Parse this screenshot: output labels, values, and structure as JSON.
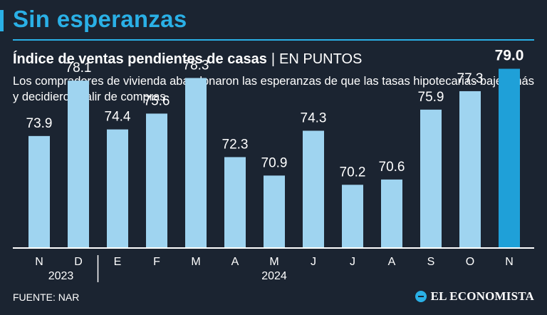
{
  "header": {
    "title": "Sin esperanzas",
    "subtitle": "Índice de ventas pendientes de casas",
    "separator": "|",
    "unit": "EN PUNTOS",
    "description": "Los compradores de vivienda abandonaron las esperanzas de que las tasas hipotecarias bajen más y decidieron salir de compras."
  },
  "footer": {
    "source": "FUENTE: NAR",
    "brand": "EL ECONOMISTA"
  },
  "colors": {
    "background": "#1b2431",
    "accent": "#2ab0e6",
    "bar": "#9fd4f0",
    "highlight_bar": "#1fa0d8",
    "text": "#ffffff"
  },
  "chart_data": {
    "type": "bar",
    "title": "Índice de ventas pendientes de casas",
    "ylabel": "EN PUNTOS",
    "xlabel": "",
    "categories": [
      "N",
      "D",
      "E",
      "F",
      "M",
      "A",
      "M",
      "J",
      "J",
      "A",
      "S",
      "O",
      "N"
    ],
    "values": [
      73.9,
      78.1,
      74.4,
      75.6,
      78.3,
      72.3,
      70.9,
      74.3,
      70.2,
      70.6,
      75.9,
      77.3,
      79.0
    ],
    "value_labels": [
      "73.9",
      "78.1",
      "74.4",
      "75.6",
      "78.3",
      "72.3",
      "70.9",
      "74.3",
      "70.2",
      "70.6",
      "75.9",
      "77.3",
      "79.0"
    ],
    "highlight_index": 12,
    "years": [
      {
        "label": "2023",
        "start_index": 0,
        "end_index": 1
      },
      {
        "label": "2024",
        "start_index": 2,
        "end_index": 12
      }
    ],
    "ylim": [
      60,
      80
    ],
    "grid": false
  }
}
